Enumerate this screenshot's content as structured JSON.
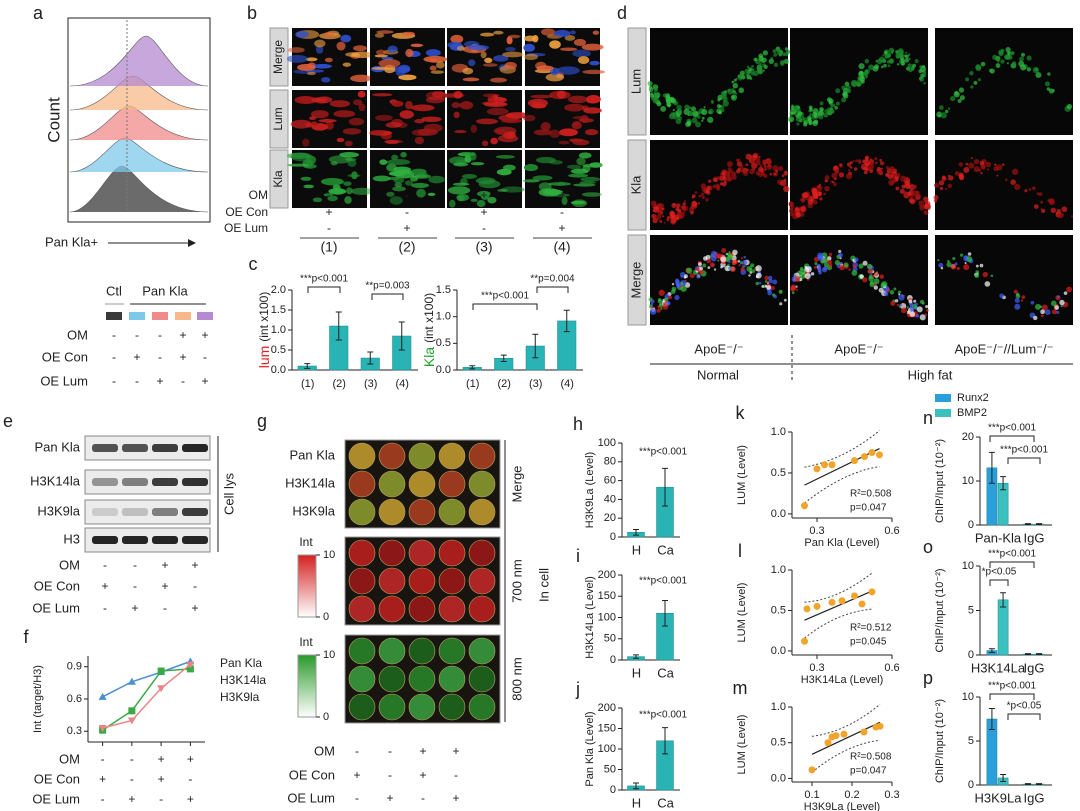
{
  "a": {
    "panel": "a",
    "y_label": "Count",
    "x_label": "Pan Kla+",
    "groups": [
      "Ctl",
      "Pan Kla"
    ],
    "rows": [
      {
        "name": "OM",
        "marks": [
          "-",
          "-",
          "-",
          "+",
          "+"
        ]
      },
      {
        "name": "OE Con",
        "marks": [
          "-",
          "+",
          "-",
          "+",
          "-"
        ]
      },
      {
        "name": "OE Lum",
        "marks": [
          "-",
          "-",
          "+",
          "-",
          "+"
        ]
      }
    ]
  },
  "b": {
    "panel": "b",
    "channels": [
      "Merge",
      "Lum",
      "Kla"
    ],
    "rows": [
      {
        "name": "OM",
        "marks": [
          "-",
          "-",
          "+",
          "+"
        ]
      },
      {
        "name": "OE Con",
        "marks": [
          "+",
          "-",
          "+",
          "-"
        ]
      },
      {
        "name": "OE Lum",
        "marks": [
          "-",
          "+",
          "-",
          "+"
        ]
      }
    ],
    "conditions": [
      "(1)",
      "(2)",
      "(3)",
      "(4)"
    ]
  },
  "d": {
    "panel": "d",
    "channels": [
      "Lum",
      "Kla",
      "Merge"
    ],
    "genotypes": [
      "ApoE⁻/⁻",
      "ApoE⁻/⁻",
      "ApoE⁻/⁻//Lum⁻/⁻"
    ],
    "diets": [
      "Normal",
      "High fat"
    ]
  },
  "e": {
    "panel": "e",
    "bands": [
      "Pan Kla",
      "H3K14la",
      "H3K9la",
      "H3"
    ],
    "side_label": "Cell lys",
    "rows": [
      {
        "name": "OM",
        "marks": [
          "-",
          "-",
          "+",
          "+"
        ]
      },
      {
        "name": "OE Con",
        "marks": [
          "+",
          "-",
          "+",
          "-"
        ]
      },
      {
        "name": "OE Lum",
        "marks": [
          "-",
          "+",
          "-",
          "+"
        ]
      }
    ]
  },
  "g": {
    "panel": "g",
    "row_labels": [
      "Pan Kla",
      "H3K14la",
      "H3K9la"
    ],
    "channels": [
      "Merge",
      "700 nm",
      "800 nm"
    ],
    "side_label": "In cell",
    "scales": [
      {
        "label": "Int",
        "ticks": [
          0,
          10
        ]
      },
      {
        "label": "Int",
        "ticks": [
          0,
          10
        ]
      }
    ],
    "rows": [
      {
        "name": "OM",
        "marks": [
          "-",
          "-",
          "+",
          "+"
        ]
      },
      {
        "name": "OE Con",
        "marks": [
          "+",
          "-",
          "+",
          "-"
        ]
      },
      {
        "name": "OE Lum",
        "marks": [
          "-",
          "+",
          "-",
          "+"
        ]
      }
    ]
  },
  "chart_data": [
    {
      "type": "bar",
      "panel": "c",
      "y_label_name": "lum",
      "y_label_unit": "(int x100)",
      "categories": [
        "(1)",
        "(2)",
        "(3)",
        "(4)"
      ],
      "values": [
        0.1,
        1.1,
        0.3,
        0.85
      ],
      "errors": [
        0.06,
        0.35,
        0.15,
        0.35
      ],
      "color": "#2ab3b5",
      "ylim": [
        0,
        2
      ],
      "yticks": [
        {
          "value": 0,
          "label": "0.0"
        },
        {
          "value": 0.5,
          "label": "0.5"
        },
        {
          "value": 1,
          "label": "1.0"
        },
        {
          "value": 1.5,
          "label": "1.5"
        },
        {
          "value": 2,
          "label": "2.0"
        }
      ],
      "annotations": [
        "***p<0.001",
        "**p=0.003"
      ]
    },
    {
      "type": "bar",
      "y_label_name": "Kla",
      "y_label_unit": "(int x100)",
      "categories": [
        "(1)",
        "(2)",
        "(3)",
        "(4)"
      ],
      "values": [
        0.05,
        0.22,
        0.45,
        0.92
      ],
      "errors": [
        0.03,
        0.06,
        0.22,
        0.2
      ],
      "color": "#2ab3b5",
      "ylim": [
        0,
        1.5
      ],
      "yticks": [
        {
          "value": 0,
          "label": "0.0"
        },
        {
          "value": 0.5,
          "label": "0.5"
        },
        {
          "value": 1,
          "label": "1.0"
        },
        {
          "value": 1.5,
          "label": "1.5"
        }
      ],
      "annotations": [
        "***p<0.001",
        "**p=0.004"
      ]
    },
    {
      "type": "line",
      "panel": "f",
      "y_label": "Int (target/H3)",
      "categories": [
        null,
        null,
        null,
        null
      ],
      "series": [
        {
          "name": "Pan Kla",
          "color": "#4a8fd6",
          "values": [
            0.62,
            0.76,
            0.85,
            0.95
          ]
        },
        {
          "name": "H3K14la",
          "color": "#3aa845",
          "values": [
            0.31,
            0.49,
            0.86,
            0.88
          ]
        },
        {
          "name": "H3K9la",
          "color": "#e98585",
          "values": [
            0.33,
            0.4,
            0.7,
            0.92
          ]
        }
      ],
      "ylim": [
        0.2,
        1.0
      ],
      "yticks": [
        0.3,
        0.6,
        0.9
      ],
      "rows": [
        {
          "name": "OM",
          "marks": [
            "-",
            "-",
            "+",
            "+"
          ]
        },
        {
          "name": "OE Con",
          "marks": [
            "+",
            "-",
            "+",
            "-"
          ]
        },
        {
          "name": "OE Lum",
          "marks": [
            "-",
            "+",
            "-",
            "+"
          ]
        }
      ]
    },
    {
      "type": "bar",
      "panel": "h",
      "y_label": "H3K9La (Level)",
      "categories": [
        "H",
        "Ca"
      ],
      "values": [
        5,
        53
      ],
      "errors": [
        3,
        20
      ],
      "color": "#2ab3b5",
      "ylim": [
        0,
        100
      ],
      "yticks": [
        0,
        20,
        40,
        60,
        80,
        100
      ],
      "annotations": [
        "***p<0.001"
      ]
    },
    {
      "type": "bar",
      "panel": "i",
      "y_label": "H3K14La (Level)",
      "categories": [
        "H",
        "Ca"
      ],
      "values": [
        8,
        110
      ],
      "errors": [
        4,
        30
      ],
      "color": "#2ab3b5",
      "ylim": [
        0,
        200
      ],
      "yticks": [
        0,
        50,
        100,
        150,
        200
      ],
      "annotations": [
        "***p<0.001"
      ]
    },
    {
      "type": "bar",
      "panel": "j",
      "y_label": "Pan Kla (Level)",
      "categories": [
        "H",
        "Ca"
      ],
      "values": [
        10,
        120
      ],
      "errors": [
        7,
        32
      ],
      "color": "#2ab3b5",
      "ylim": [
        0,
        200
      ],
      "yticks": [
        0,
        50,
        100,
        150,
        200
      ],
      "annotations": [
        "***p<0.001"
      ]
    },
    {
      "type": "scatter",
      "panel": "k",
      "y_label": "LUM (Level)",
      "x_label": "Pan Kla (Level)",
      "color": "#f0a52a",
      "x": [
        0.25,
        0.3,
        0.33,
        0.36,
        0.45,
        0.49,
        0.52,
        0.55
      ],
      "values": [
        0.1,
        0.55,
        0.6,
        0.6,
        0.65,
        0.7,
        0.75,
        0.72
      ],
      "xlim": [
        0.2,
        0.6
      ],
      "xticks": [
        0.3,
        0.6
      ],
      "ylim": [
        -0.05,
        1.0
      ],
      "yticks": [
        {
          "value": 0,
          "label": "0.0"
        },
        {
          "value": 0.5,
          "label": "0.5"
        },
        {
          "value": 1,
          "label": "1.0"
        }
      ],
      "stats": [
        "R²=0.508",
        "p=0.047"
      ]
    },
    {
      "type": "scatter",
      "panel": "l",
      "y_label": "LUM (Level)",
      "x_label": "H3K14La (Level)",
      "color": "#f0a52a",
      "x": [
        0.25,
        0.26,
        0.3,
        0.36,
        0.4,
        0.45,
        0.48,
        0.52
      ],
      "values": [
        0.12,
        0.52,
        0.55,
        0.6,
        0.62,
        0.68,
        0.58,
        0.73
      ],
      "xlim": [
        0.2,
        0.6
      ],
      "xticks": [
        0.3,
        0.6
      ],
      "ylim": [
        -0.05,
        1.0
      ],
      "yticks": [
        {
          "value": 0,
          "label": "0.0"
        },
        {
          "value": 0.5,
          "label": "0.5"
        },
        {
          "value": 1,
          "label": "1.0"
        }
      ],
      "stats": [
        "R²=0.512",
        "p=0.045"
      ]
    },
    {
      "type": "scatter",
      "panel": "m",
      "y_label": "LUM (Level)",
      "x_label": "H3K9La (Level)",
      "color": "#f0a52a",
      "x": [
        0.1,
        0.14,
        0.16,
        0.15,
        0.18,
        0.23,
        0.26,
        0.27
      ],
      "values": [
        0.12,
        0.5,
        0.6,
        0.58,
        0.62,
        0.65,
        0.72,
        0.73
      ],
      "xlim": [
        0.05,
        0.3
      ],
      "xticks": [
        0.1,
        0.2,
        0.3
      ],
      "ylim": [
        -0.05,
        1.0
      ],
      "yticks": [
        {
          "value": 0,
          "label": "0.0"
        },
        {
          "value": 0.5,
          "label": "0.5"
        },
        {
          "value": 1,
          "label": "1.0"
        }
      ],
      "stats": [
        "R²=0.508",
        "p=0.047"
      ]
    },
    {
      "type": "bar",
      "panel": "n",
      "y_label": "ChIP/Input (10⁻²)",
      "categories": [
        "Pan-Kla",
        "IgG"
      ],
      "series": [
        {
          "name": "Runx2",
          "color": "#2b9fd9",
          "values": [
            13,
            0.2
          ],
          "errors": [
            3.5,
            0.1
          ]
        },
        {
          "name": "BMP2",
          "color": "#3bbfbf",
          "values": [
            9.5,
            0.2
          ],
          "errors": [
            1.5,
            0.1
          ]
        }
      ],
      "ylim": [
        0,
        20
      ],
      "yticks": [
        0,
        10,
        20
      ],
      "annotations": [
        "***p<0.001",
        "***p<0.001"
      ]
    },
    {
      "type": "bar",
      "panel": "o",
      "y_label": "ChIP/Input (10⁻²)",
      "categories": [
        "H3K14La",
        "IgG"
      ],
      "series": [
        {
          "color": "#2b9fd9",
          "values": [
            0.5,
            0.1
          ],
          "errors": [
            0.2,
            0.05
          ]
        },
        {
          "color": "#3bbfbf",
          "values": [
            6.2,
            0.1
          ],
          "errors": [
            0.8,
            0.05
          ]
        }
      ],
      "ylim": [
        0,
        10
      ],
      "yticks": [
        0,
        5,
        10
      ],
      "annotations": [
        "***p<0.001",
        "*p<0.05"
      ]
    },
    {
      "type": "bar",
      "panel": "p",
      "y_label": "ChIP/Input (10⁻²)",
      "categories": [
        "H3K9La",
        "IgG"
      ],
      "series": [
        {
          "color": "#2b9fd9",
          "values": [
            7.5,
            0.1
          ],
          "errors": [
            1.2,
            0.05
          ]
        },
        {
          "color": "#3bbfbf",
          "values": [
            0.8,
            0.1
          ],
          "errors": [
            0.4,
            0.05
          ]
        }
      ],
      "ylim": [
        0,
        10
      ],
      "yticks": [
        0,
        5,
        10
      ],
      "annotations": [
        "***p<0.001",
        "*p<0.05"
      ]
    }
  ]
}
